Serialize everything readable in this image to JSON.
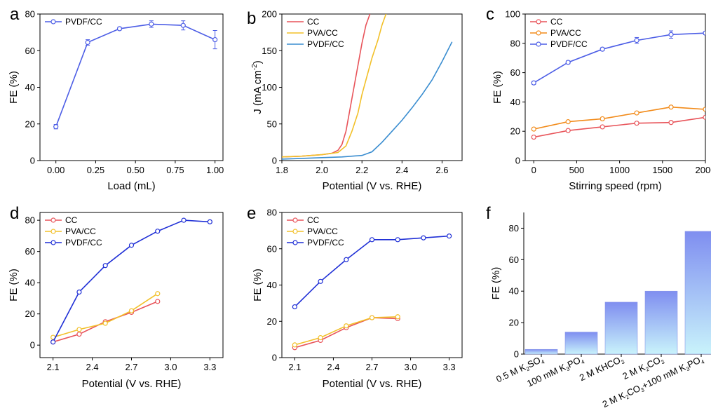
{
  "colors": {
    "cc": "#e8545a",
    "pva": "#f2c029",
    "pvdf": "#1f2fd6",
    "pvdf_b": "#3a8dd0",
    "pvdf_a": "#4d5ee6",
    "orange": "#f28b1a",
    "bar_top": "#7f8ef0",
    "bar_bottom": "#c9f3fb"
  },
  "chart_data": [
    {
      "id": "a",
      "panel_label": "a",
      "type": "line",
      "xlabel": "Load (mL)",
      "ylabel": "FE (%)",
      "xlim": [
        -0.1,
        1.05
      ],
      "ylim": [
        0,
        80
      ],
      "xticks": [
        "0.00",
        "0.25",
        "0.50",
        "0.75",
        "1.00"
      ],
      "xtick_values": [
        0,
        0.25,
        0.5,
        0.75,
        1.0
      ],
      "yticks": [
        "0",
        "20",
        "40",
        "60",
        "80"
      ],
      "ytick_values": [
        0,
        20,
        40,
        60,
        80
      ],
      "series": [
        {
          "name": "PVDF/CC",
          "color": "#4d5ee6",
          "x": [
            0,
            0.2,
            0.4,
            0.6,
            0.8,
            1.0
          ],
          "values": [
            18.5,
            64.5,
            72,
            74.5,
            73.8,
            66
          ],
          "errors": [
            1.2,
            1.5,
            0.8,
            1.8,
            2.5,
            5
          ]
        }
      ]
    },
    {
      "id": "b",
      "panel_label": "b",
      "type": "line",
      "xlabel": "Potential (V vs. RHE)",
      "ylabel": "J (mA cm",
      "ylabel_sup": "-2",
      "ylabel_end": ")",
      "xlim": [
        1.8,
        2.7
      ],
      "ylim": [
        0,
        200
      ],
      "xticks": [
        "1.8",
        "2.0",
        "2.2",
        "2.4",
        "2.6"
      ],
      "xtick_values": [
        1.8,
        2.0,
        2.2,
        2.4,
        2.6
      ],
      "yticks": [
        "0",
        "50",
        "100",
        "150",
        "200"
      ],
      "ytick_values": [
        0,
        50,
        100,
        150,
        200
      ],
      "series": [
        {
          "name": "CC",
          "color": "#e8545a",
          "x": [
            1.8,
            1.9,
            2.0,
            2.05,
            2.08,
            2.1,
            2.12,
            2.14,
            2.16,
            2.18,
            2.2,
            2.22,
            2.24
          ],
          "values": [
            5,
            6,
            8,
            10,
            14,
            22,
            40,
            70,
            100,
            130,
            160,
            185,
            200
          ]
        },
        {
          "name": "PVA/CC",
          "color": "#f2c029",
          "x": [
            1.8,
            1.9,
            2.0,
            2.08,
            2.12,
            2.15,
            2.18,
            2.2,
            2.22,
            2.25,
            2.28,
            2.3,
            2.32
          ],
          "values": [
            5,
            6,
            8,
            11,
            20,
            40,
            65,
            90,
            110,
            140,
            165,
            185,
            200
          ]
        },
        {
          "name": "PVDF/CC",
          "color": "#3a8dd0",
          "x": [
            1.8,
            1.9,
            2.0,
            2.1,
            2.2,
            2.25,
            2.3,
            2.35,
            2.4,
            2.45,
            2.5,
            2.55,
            2.6,
            2.65
          ],
          "values": [
            2,
            3,
            4,
            5,
            7,
            12,
            25,
            40,
            55,
            72,
            90,
            110,
            135,
            162
          ]
        }
      ]
    },
    {
      "id": "c",
      "panel_label": "c",
      "type": "line",
      "xlabel": "Stirring speed (rpm)",
      "ylabel": "FE (%)",
      "xlim": [
        -100,
        2000
      ],
      "ylim": [
        0,
        100
      ],
      "xticks": [
        "0",
        "500",
        "1000",
        "1500",
        "2000"
      ],
      "xtick_values": [
        0,
        500,
        1000,
        1500,
        2000
      ],
      "yticks": [
        "0",
        "20",
        "40",
        "60",
        "80",
        "100"
      ],
      "ytick_values": [
        0,
        20,
        40,
        60,
        80,
        100
      ],
      "series": [
        {
          "name": "CC",
          "color": "#e8545a",
          "x": [
            0,
            400,
            800,
            1200,
            1600,
            2000
          ],
          "values": [
            16,
            20.5,
            23,
            25.5,
            26,
            29.5
          ]
        },
        {
          "name": "PVA/CC",
          "color": "#f28b1a",
          "x": [
            0,
            400,
            800,
            1200,
            1600,
            2000
          ],
          "values": [
            21.5,
            26.5,
            28.5,
            32.5,
            36.5,
            35
          ]
        },
        {
          "name": "PVDF/CC",
          "color": "#4d5ee6",
          "x": [
            0,
            400,
            800,
            1200,
            1600,
            2000
          ],
          "values": [
            53,
            67,
            76,
            82,
            86,
            87
          ],
          "errors": [
            1,
            1,
            1,
            2,
            2.5,
            1
          ]
        }
      ]
    },
    {
      "id": "d",
      "panel_label": "d",
      "type": "line",
      "xlabel": "Potential (V vs. RHE)",
      "ylabel": "FE (%)",
      "xlim": [
        2.0,
        3.4
      ],
      "ylim": [
        -8,
        85
      ],
      "xticks": [
        "2.1",
        "2.4",
        "2.7",
        "3.0",
        "3.3"
      ],
      "xtick_values": [
        2.1,
        2.4,
        2.7,
        3.0,
        3.3
      ],
      "yticks": [
        "0",
        "20",
        "40",
        "60",
        "80"
      ],
      "ytick_values": [
        0,
        20,
        40,
        60,
        80
      ],
      "series": [
        {
          "name": "CC",
          "color": "#e8545a",
          "x": [
            2.1,
            2.3,
            2.5,
            2.7,
            2.9
          ],
          "values": [
            2,
            7,
            15,
            21,
            28
          ]
        },
        {
          "name": "PVA/CC",
          "color": "#f2c029",
          "x": [
            2.1,
            2.3,
            2.5,
            2.7,
            2.9
          ],
          "values": [
            5,
            10,
            14,
            22,
            33
          ]
        },
        {
          "name": "PVDF/CC",
          "color": "#1f2fd6",
          "x": [
            2.1,
            2.3,
            2.5,
            2.7,
            2.9,
            3.1,
            3.3
          ],
          "values": [
            2,
            34,
            51,
            64,
            73,
            80,
            79
          ]
        }
      ]
    },
    {
      "id": "e",
      "panel_label": "e",
      "type": "line",
      "xlabel": "Potential (V vs. RHE)",
      "ylabel": "FE (%)",
      "xlim": [
        2.0,
        3.4
      ],
      "ylim": [
        0,
        80
      ],
      "xticks": [
        "2.1",
        "2.4",
        "2.7",
        "3.0",
        "3.3"
      ],
      "xtick_values": [
        2.1,
        2.4,
        2.7,
        3.0,
        3.3
      ],
      "yticks": [
        "0",
        "20",
        "40",
        "60",
        "80"
      ],
      "ytick_values": [
        0,
        20,
        40,
        60,
        80
      ],
      "series": [
        {
          "name": "CC",
          "color": "#e8545a",
          "x": [
            2.1,
            2.3,
            2.5,
            2.7,
            2.9
          ],
          "values": [
            5.5,
            9.5,
            16.5,
            22,
            21.5
          ]
        },
        {
          "name": "PVA/CC",
          "color": "#f2c029",
          "x": [
            2.1,
            2.3,
            2.5,
            2.7,
            2.9
          ],
          "values": [
            7,
            11,
            17.5,
            22,
            22.5
          ]
        },
        {
          "name": "PVDF/CC",
          "color": "#1f2fd6",
          "x": [
            2.1,
            2.3,
            2.5,
            2.7,
            2.9,
            3.1,
            3.3
          ],
          "values": [
            28,
            42,
            54,
            65,
            65,
            66,
            67
          ]
        }
      ]
    },
    {
      "id": "f",
      "panel_label": "f",
      "type": "bar",
      "ylabel": "FE (%)",
      "ylim": [
        0,
        90
      ],
      "yticks": [
        "0",
        "20",
        "40",
        "60",
        "80"
      ],
      "ytick_values": [
        0,
        20,
        40,
        60,
        80
      ],
      "categories": [
        {
          "pre": "0.5 M K",
          "sub1": "2",
          "mid": "SO",
          "sub2": "4",
          "post": ""
        },
        {
          "pre": "100 mM K",
          "sub1": "3",
          "mid": "PO",
          "sub2": "4",
          "post": ""
        },
        {
          "pre": "2 M KHCO",
          "sub1": "3",
          "mid": "",
          "sub2": "",
          "post": ""
        },
        {
          "pre": "2 M K",
          "sub1": "2",
          "mid": "CO",
          "sub2": "3",
          "post": ""
        },
        {
          "pre": "2 M K",
          "sub1": "2",
          "mid": "CO",
          "sub2": "3",
          "post": "+100 mM K",
          "sub3": "3",
          "mid2": "PO",
          "sub4": "4"
        }
      ],
      "values": [
        3,
        14,
        33,
        40,
        78
      ]
    }
  ]
}
